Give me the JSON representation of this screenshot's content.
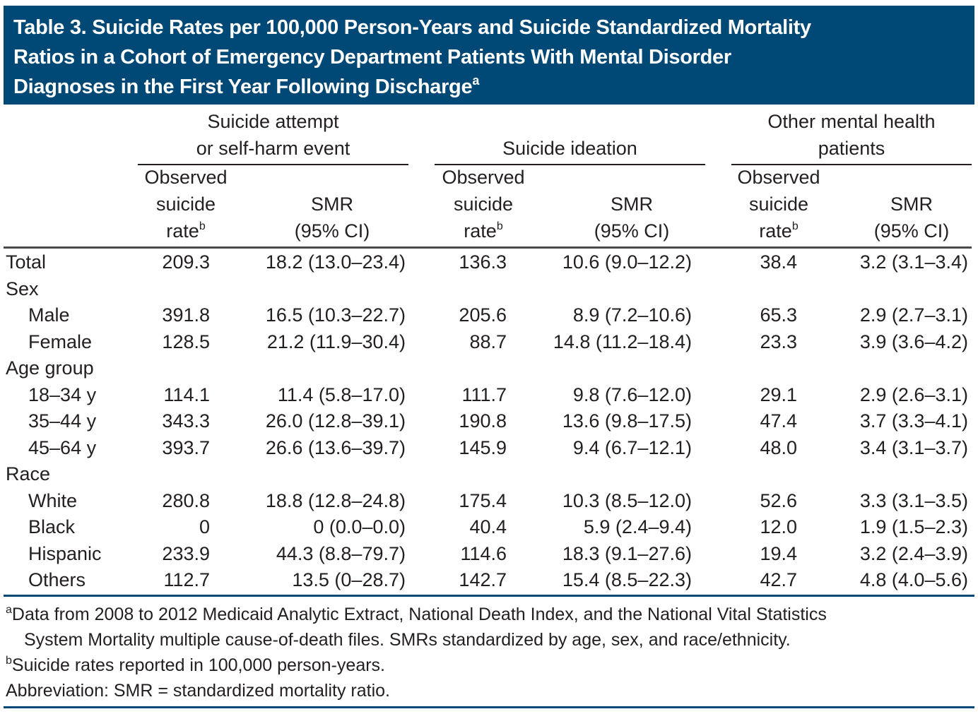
{
  "title": {
    "line1": "Table 3. Suicide Rates per 100,000 Person-Years and Suicide Standardized Mortality",
    "line2": "Ratios in a Cohort of Emergency Department Patients With Mental Disorder",
    "line3": "Diagnoses in the First Year Following Discharge",
    "superscript": "a"
  },
  "groups": [
    {
      "line1": "Suicide attempt",
      "line2": "or self-harm event"
    },
    {
      "line1": "Suicide ideation",
      "line2": ""
    },
    {
      "line1": "Other mental health",
      "line2": "patients"
    }
  ],
  "subheaders": {
    "rate_line1": "Observed",
    "rate_line2": "suicide",
    "rate_line3": "rate",
    "rate_sup": "b",
    "smr_line1": "SMR",
    "smr_line2": "(95% CI)"
  },
  "rows": [
    {
      "label": "Total",
      "indent": false,
      "values": [
        "209.3",
        "18.2 (13.0–23.4)",
        "136.3",
        "10.6 (9.0–12.2)",
        "38.4",
        "3.2 (3.1–3.4)"
      ]
    },
    {
      "label": "Sex",
      "indent": false,
      "values": [
        "",
        "",
        "",
        "",
        "",
        ""
      ]
    },
    {
      "label": "Male",
      "indent": true,
      "values": [
        "391.8",
        "16.5 (10.3–22.7)",
        "205.6",
        "8.9 (7.2–10.6)",
        "65.3",
        "2.9 (2.7–3.1)"
      ]
    },
    {
      "label": "Female",
      "indent": true,
      "values": [
        "128.5",
        "21.2 (11.9–30.4)",
        "88.7",
        "14.8 (11.2–18.4)",
        "23.3",
        "3.9 (3.6–4.2)"
      ]
    },
    {
      "label": "Age group",
      "indent": false,
      "values": [
        "",
        "",
        "",
        "",
        "",
        ""
      ]
    },
    {
      "label": "18–34 y",
      "indent": true,
      "values": [
        "114.1",
        "11.4 (5.8–17.0)",
        "111.7",
        "9.8 (7.6–12.0)",
        "29.1",
        "2.9 (2.6–3.1)"
      ]
    },
    {
      "label": "35–44 y",
      "indent": true,
      "values": [
        "343.3",
        "26.0 (12.8–39.1)",
        "190.8",
        "13.6 (9.8–17.5)",
        "47.4",
        "3.7 (3.3–4.1)"
      ]
    },
    {
      "label": "45–64 y",
      "indent": true,
      "values": [
        "393.7",
        "26.6 (13.6–39.7)",
        "145.9",
        "9.4 (6.7–12.1)",
        "48.0",
        "3.4 (3.1–3.7)"
      ]
    },
    {
      "label": "Race",
      "indent": false,
      "values": [
        "",
        "",
        "",
        "",
        "",
        ""
      ]
    },
    {
      "label": "White",
      "indent": true,
      "values": [
        "280.8",
        "18.8 (12.8–24.8)",
        "175.4",
        "10.3 (8.5–12.0)",
        "52.6",
        "3.3 (3.1–3.5)"
      ]
    },
    {
      "label": "Black",
      "indent": true,
      "values": [
        "0",
        "0 (0.0–0.0)",
        "40.4",
        "5.9 (2.4–9.4)",
        "12.0",
        "1.9 (1.5–2.3)"
      ]
    },
    {
      "label": "Hispanic",
      "indent": true,
      "values": [
        "233.9",
        "44.3 (8.8–79.7)",
        "114.6",
        "18.3 (9.1–27.6)",
        "19.4",
        "3.2 (2.4–3.9)"
      ]
    },
    {
      "label": "Others",
      "indent": true,
      "values": [
        "112.7",
        "13.5 (0–28.7)",
        "142.7",
        "15.4 (8.5–22.3)",
        "42.7",
        "4.8 (4.0–5.6)"
      ]
    }
  ],
  "footnotes": {
    "a_sup": "a",
    "a_line1": "Data from 2008 to 2012 Medicaid Analytic Extract, National Death Index, and the National Vital Statistics",
    "a_line2": "System Mortality multiple cause-of-death files. SMRs standardized by age, sex, and race/ethnicity.",
    "b_sup": "b",
    "b_text": "Suicide rates reported in 100,000 person-years.",
    "abbrev": "Abbreviation: SMR = standardized mortality ratio."
  },
  "colors": {
    "header_bg": "#004876",
    "text": "#231f20"
  }
}
